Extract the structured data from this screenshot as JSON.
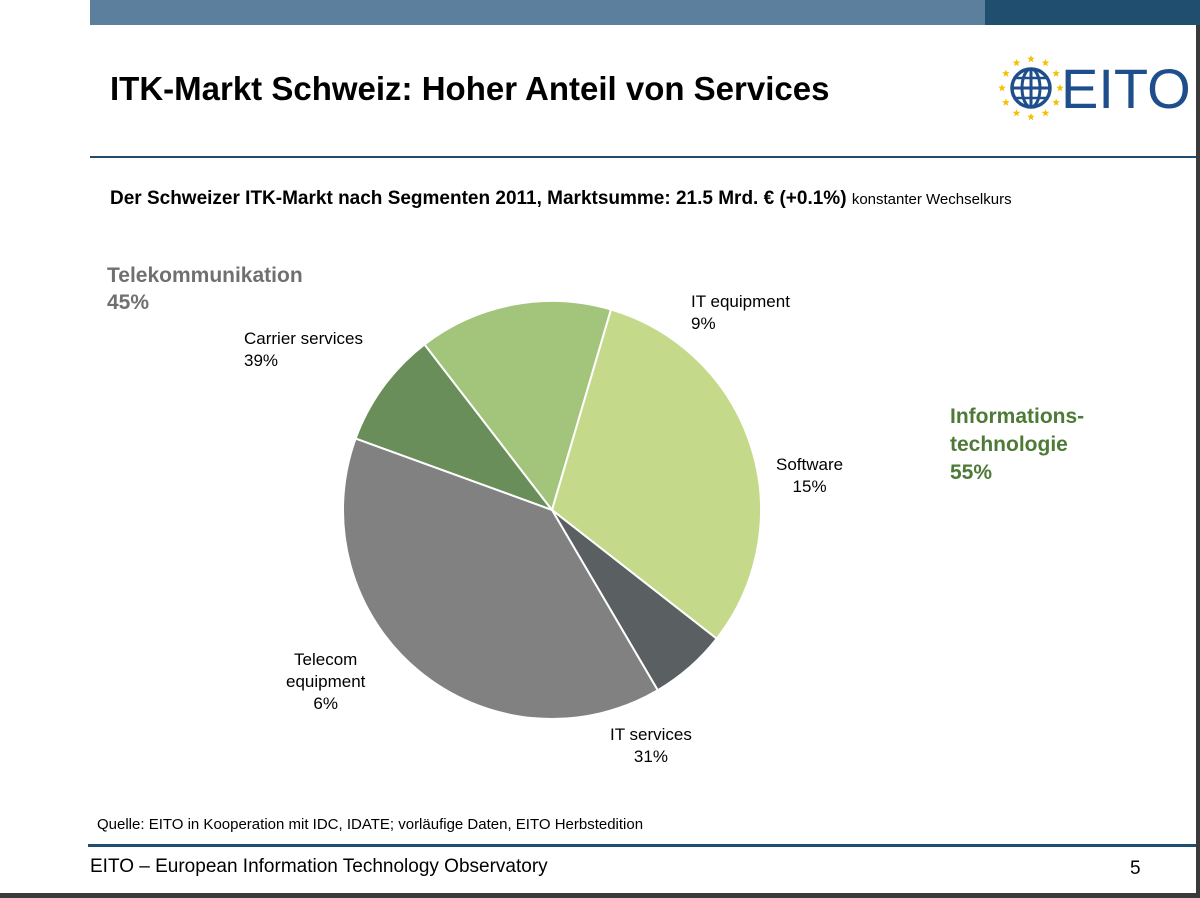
{
  "title": "ITK-Markt Schweiz: Hoher Anteil von Services",
  "logo": {
    "text": "EITO",
    "icon": "globe-with-stars-icon",
    "colors": {
      "text": "#1f4e8c",
      "stars": "#f2c200"
    }
  },
  "subtitle": {
    "main": "Der Schweizer ITK-Markt nach Segmenten 2011, Marktsumme: 21.5 Mrd. € (+0.1%)",
    "note": "konstanter Wechselkurs"
  },
  "groups": {
    "telekom": {
      "name": "Telekommunikation",
      "share": "45%",
      "color": "#707070"
    },
    "it": {
      "name_line1": "Informations-",
      "name_line2": "technologie",
      "share": "55%",
      "color": "#4e7a38"
    }
  },
  "chart_data": {
    "type": "pie",
    "title": "",
    "slices": [
      {
        "name": "IT equipment",
        "value": 9,
        "label": "9%",
        "color": "#6a8e59"
      },
      {
        "name": "Software",
        "value": 15,
        "label": "15%",
        "color": "#a3c47b"
      },
      {
        "name": "IT services",
        "value": 31,
        "label": "31%",
        "color": "#c5d98b"
      },
      {
        "name_line1": "Telecom",
        "name_line2": "equipment",
        "value": 6,
        "label": "6%",
        "color": "#5a5f61"
      },
      {
        "name": "Carrier services",
        "value": 39,
        "label": "39%",
        "color": "#818181"
      }
    ]
  },
  "source": "Quelle: EITO in Kooperation mit  IDC, IDATE; vorläufige Daten, EITO Herbstedition",
  "footer": {
    "text": "EITO – European Information Technology Observatory",
    "page": "5"
  }
}
